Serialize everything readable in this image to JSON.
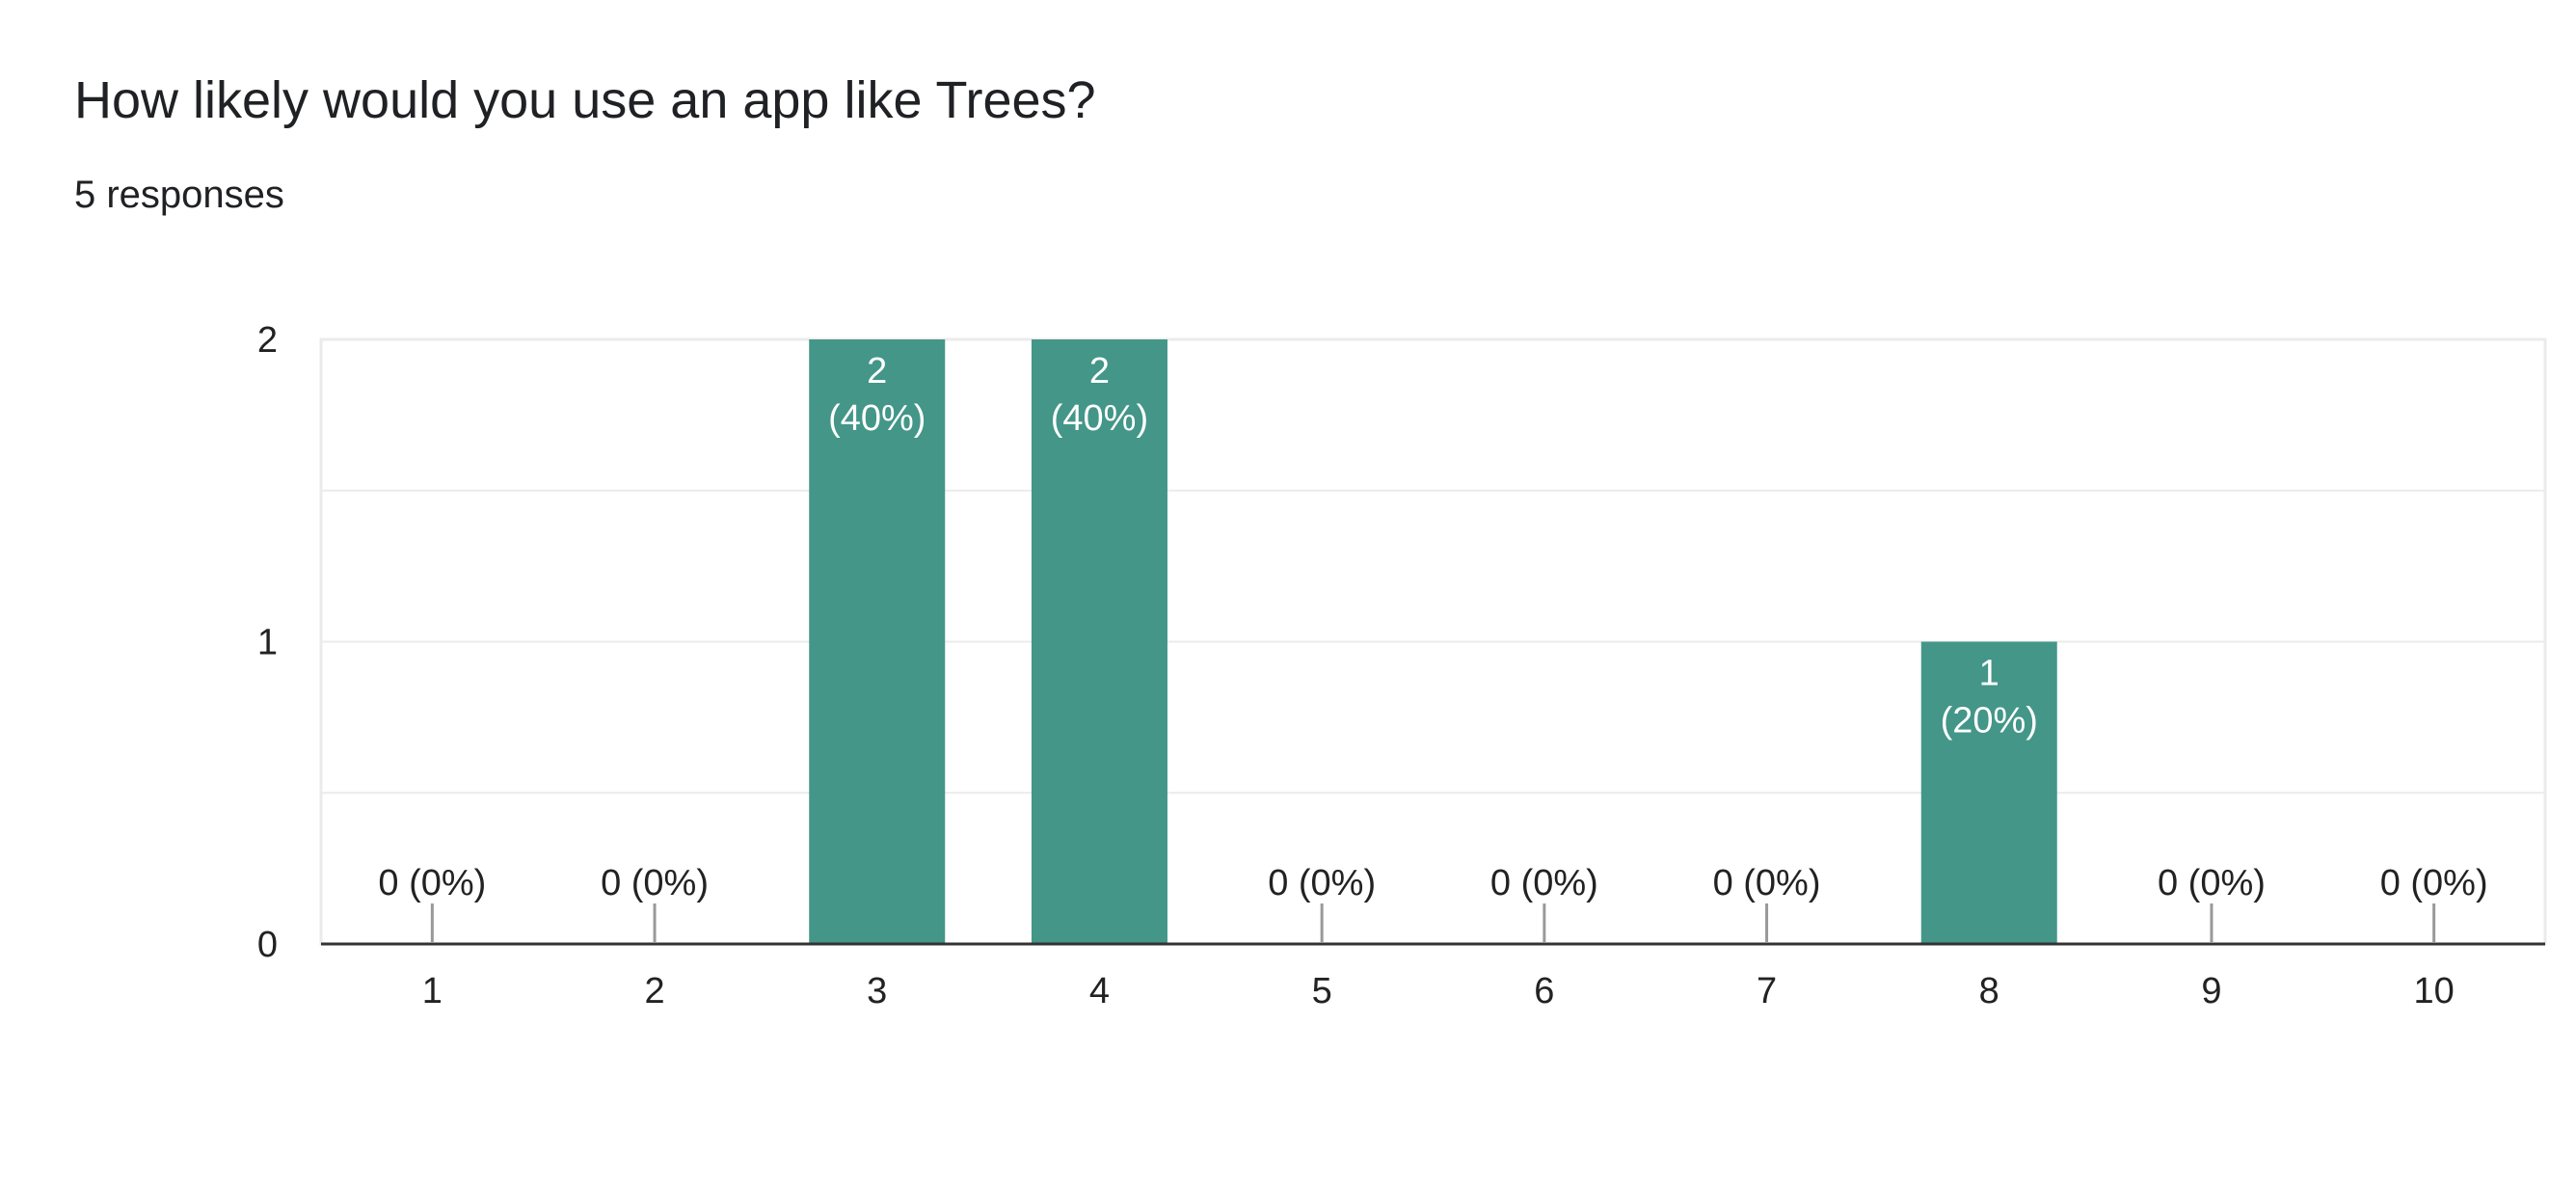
{
  "header": {
    "title": "How likely would you use an app like Trees?",
    "responses": "5 responses"
  },
  "colors": {
    "bar": "#439688",
    "gridline": "#ebebeb",
    "axis": "#333333",
    "leader": "#999999"
  },
  "chart_data": {
    "type": "bar",
    "categories": [
      "1",
      "2",
      "3",
      "4",
      "5",
      "6",
      "7",
      "8",
      "9",
      "10"
    ],
    "values": [
      0,
      0,
      2,
      2,
      0,
      0,
      0,
      1,
      0,
      0
    ],
    "data_labels": [
      "0 (0%)",
      "0 (0%)",
      "2\n(40%)",
      "2\n(40%)",
      "0 (0%)",
      "0 (0%)",
      "0 (0%)",
      "1\n(20%)",
      "0 (0%)",
      "0 (0%)"
    ],
    "title": "",
    "xlabel": "",
    "ylabel": "",
    "ylim": [
      0,
      2
    ],
    "yticks": [
      0,
      1,
      2
    ],
    "grid": true,
    "legend": "none"
  }
}
